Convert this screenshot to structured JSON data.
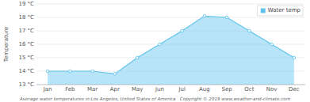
{
  "chart_data": {
    "type": "area",
    "xlabel": "Average water temperatures in Los Angeles, United States of America   Copyright © 2019 www.weather-and-climate.com",
    "ylabel": "Temperature",
    "categories": [
      "Jan",
      "Feb",
      "Mar",
      "Apr",
      "May",
      "Jun",
      "Jul",
      "Aug",
      "Sep",
      "Oct",
      "Nov",
      "Dec"
    ],
    "series": [
      {
        "name": "Water temp",
        "color": "#62c4ee",
        "marker": "circle",
        "values": [
          14,
          14,
          14,
          13.8,
          15,
          16,
          17,
          18.1,
          18,
          17,
          16,
          15
        ]
      }
    ],
    "ylim": [
      13,
      19
    ],
    "yticks": [
      {
        "value": 13,
        "label": "13 °C"
      },
      {
        "value": 14,
        "label": "14 °C"
      },
      {
        "value": 15,
        "label": "15 °C"
      },
      {
        "value": 16,
        "label": "16 °C"
      },
      {
        "value": 17,
        "label": "17 °C"
      },
      {
        "value": 18,
        "label": "18 °C"
      },
      {
        "value": 19,
        "label": "19 °C"
      }
    ],
    "grid": true,
    "legend": "upper right"
  }
}
